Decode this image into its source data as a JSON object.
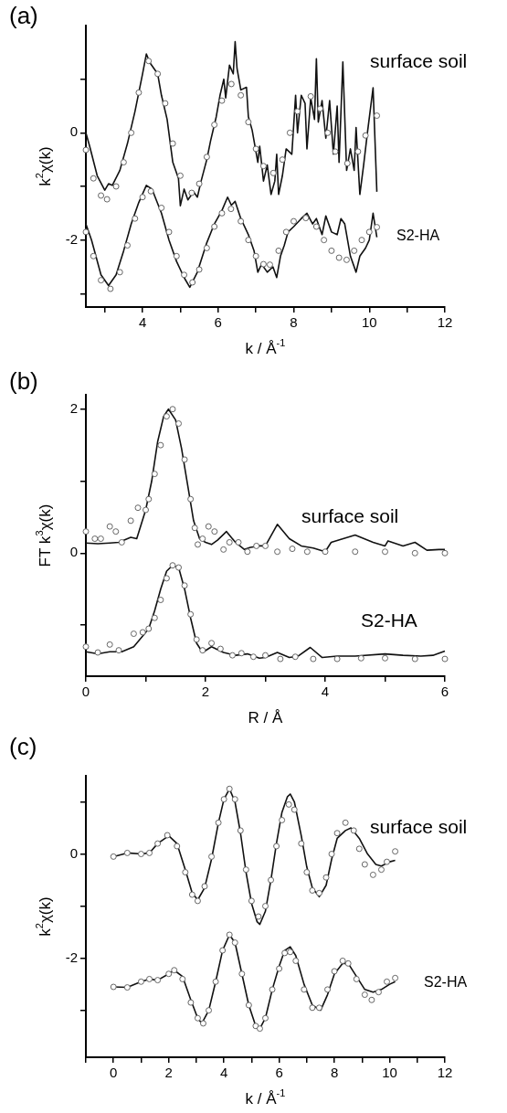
{
  "chart_data": [
    {
      "type": "line",
      "title": "(a)",
      "xlabel": "k / Å$^{-1}$",
      "ylabel": "k$^{2}$χ(k)",
      "xlim": [
        2.5,
        12
      ],
      "ylim": [
        -3.25,
        2.0
      ],
      "xticks": [
        {
          "value": 3,
          "label": null
        },
        4,
        {
          "value": 5,
          "label": null
        },
        6,
        {
          "value": 7,
          "label": null
        },
        8,
        {
          "value": 9,
          "label": null
        },
        10,
        {
          "value": 11,
          "label": null
        },
        12
      ],
      "yticks": [
        {
          "value": -3,
          "label": null
        },
        -2,
        {
          "value": -1,
          "label": null
        },
        0,
        {
          "value": 1,
          "label": null
        }
      ],
      "grid": false,
      "legend": false,
      "annotations": [
        "surface soil",
        "S2-HA"
      ],
      "series": [
        {
          "type": "line",
          "marker": "none",
          "color": "#111111",
          "x": [
            2.5,
            2.6,
            2.8,
            3.0,
            3.1,
            3.2,
            3.4,
            3.6,
            3.8,
            4.0,
            4.1,
            4.2,
            4.4,
            4.5,
            4.65,
            4.8,
            4.95,
            5.0,
            5.1,
            5.2,
            5.35,
            5.45,
            5.55,
            5.7,
            5.8,
            5.95,
            6.05,
            6.15,
            6.2,
            6.3,
            6.4,
            6.45,
            6.5,
            6.6,
            6.75,
            6.8,
            6.9,
            7.05,
            7.1,
            7.2,
            7.3,
            7.4,
            7.5,
            7.55,
            7.6,
            7.7,
            7.8,
            7.95,
            8.05,
            8.1,
            8.2,
            8.3,
            8.35,
            8.45,
            8.55,
            8.6,
            8.65,
            8.75,
            8.85,
            8.95,
            9.05,
            9.15,
            9.2,
            9.3,
            9.4,
            9.5,
            9.6,
            9.65,
            9.75,
            9.85,
            9.95,
            10.1,
            10.2
          ],
          "values": [
            0.0,
            -0.25,
            -0.8,
            -1.07,
            -0.95,
            -0.98,
            -0.7,
            -0.2,
            0.4,
            1.1,
            1.47,
            1.3,
            1.1,
            0.7,
            0.25,
            -0.55,
            -0.85,
            -1.36,
            -1.05,
            -1.25,
            -1.1,
            -1.2,
            -0.9,
            -0.5,
            -0.15,
            0.3,
            0.7,
            1.0,
            0.65,
            1.26,
            1.1,
            1.7,
            1.2,
            0.8,
            0.85,
            0.3,
            0.05,
            -0.55,
            -0.25,
            -0.9,
            -0.6,
            -1.15,
            -0.9,
            -0.4,
            -1.15,
            -0.8,
            -0.3,
            -0.4,
            0.7,
            0.0,
            0.7,
            0.55,
            -0.3,
            0.65,
            0.25,
            1.38,
            0.2,
            0.6,
            -0.1,
            0.6,
            -0.4,
            0.5,
            -0.55,
            1.32,
            -0.7,
            -0.3,
            -0.7,
            0.1,
            -1.15,
            -0.6,
            0.0,
            0.84,
            -1.1
          ]
        },
        {
          "type": "scatter",
          "marker": "circle",
          "color": "#666666",
          "x": [
            2.5,
            2.7,
            2.9,
            3.06,
            3.3,
            3.5,
            3.7,
            3.9,
            4.16,
            4.4,
            4.6,
            4.8,
            5.0,
            5.3,
            5.5,
            5.7,
            5.9,
            6.1,
            6.35,
            6.6,
            6.8,
            7.0,
            7.2,
            7.46,
            7.7,
            7.9,
            8.1,
            8.45,
            8.7,
            8.9,
            9.1,
            9.42,
            9.7,
            9.9,
            10.2
          ],
          "values": [
            -0.32,
            -0.85,
            -1.17,
            -1.24,
            -1.0,
            -0.55,
            0.0,
            0.75,
            1.34,
            1.1,
            0.55,
            -0.2,
            -0.8,
            -1.12,
            -0.95,
            -0.45,
            0.15,
            0.6,
            0.91,
            0.7,
            0.2,
            -0.3,
            -0.62,
            -0.75,
            -0.5,
            0.0,
            0.4,
            0.68,
            0.45,
            0.0,
            -0.35,
            -0.57,
            -0.35,
            -0.05,
            0.32
          ]
        },
        {
          "type": "line",
          "marker": "none",
          "color": "#111111",
          "x": [
            2.5,
            2.65,
            2.9,
            3.1,
            3.3,
            3.5,
            3.7,
            3.9,
            4.1,
            4.25,
            4.5,
            4.7,
            4.9,
            5.1,
            5.25,
            5.45,
            5.7,
            5.9,
            6.1,
            6.25,
            6.35,
            6.45,
            6.6,
            6.8,
            6.95,
            7.05,
            7.15,
            7.3,
            7.45,
            7.55,
            7.65,
            7.75,
            7.85,
            8.0,
            8.2,
            8.35,
            8.5,
            8.6,
            8.75,
            8.85,
            9.0,
            9.15,
            9.25,
            9.35,
            9.5,
            9.65,
            9.75,
            9.9,
            10.0,
            10.1,
            10.2
          ],
          "values": [
            -1.7,
            -2.0,
            -2.65,
            -2.85,
            -2.65,
            -2.2,
            -1.7,
            -1.3,
            -0.98,
            -1.05,
            -1.5,
            -2.0,
            -2.4,
            -2.7,
            -2.88,
            -2.6,
            -2.05,
            -1.7,
            -1.45,
            -1.2,
            -1.35,
            -1.28,
            -1.6,
            -1.9,
            -2.2,
            -2.6,
            -2.45,
            -2.6,
            -2.5,
            -2.7,
            -2.3,
            -2.1,
            -1.85,
            -1.75,
            -1.6,
            -1.5,
            -1.7,
            -1.6,
            -1.9,
            -1.55,
            -1.85,
            -1.9,
            -1.6,
            -1.7,
            -2.3,
            -2.6,
            -2.3,
            -2.15,
            -2.0,
            -1.5,
            -1.95
          ]
        },
        {
          "type": "scatter",
          "marker": "circle",
          "color": "#666666",
          "x": [
            2.5,
            2.7,
            2.9,
            3.15,
            3.4,
            3.6,
            3.8,
            4.0,
            4.22,
            4.5,
            4.7,
            4.9,
            5.1,
            5.32,
            5.5,
            5.7,
            5.9,
            6.1,
            6.34,
            6.6,
            6.8,
            7.0,
            7.2,
            7.37,
            7.6,
            7.8,
            8.0,
            8.32,
            8.6,
            8.8,
            9.0,
            9.2,
            9.4,
            9.6,
            9.8,
            10.0,
            10.2
          ],
          "values": [
            -1.85,
            -2.3,
            -2.75,
            -2.91,
            -2.6,
            -2.1,
            -1.6,
            -1.2,
            -1.09,
            -1.4,
            -1.85,
            -2.3,
            -2.65,
            -2.79,
            -2.55,
            -2.15,
            -1.75,
            -1.5,
            -1.42,
            -1.65,
            -2.0,
            -2.3,
            -2.45,
            -2.46,
            -2.2,
            -1.85,
            -1.65,
            -1.59,
            -1.75,
            -2.0,
            -2.2,
            -2.33,
            -2.37,
            -2.2,
            -2.0,
            -1.85,
            -1.76
          ]
        }
      ]
    },
    {
      "type": "line",
      "title": "(b)",
      "xlabel": "R / Å",
      "ylabel": "FT k$^{3}$χ(k)",
      "xlim": [
        0,
        6
      ],
      "ylim": [
        -1.71,
        2.2
      ],
      "xticks": [
        0,
        {
          "value": 1,
          "label": null
        },
        2,
        {
          "value": 3,
          "label": null
        },
        4,
        {
          "value": 5,
          "label": null
        },
        6
      ],
      "yticks": [
        {
          "value": -1,
          "label": null
        },
        0,
        {
          "value": 1,
          "label": null
        },
        2
      ],
      "grid": false,
      "legend": false,
      "annotations": [
        "surface soil",
        "S2-HA"
      ],
      "series": [
        {
          "type": "line",
          "marker": "none",
          "color": "#111111",
          "x": [
            0,
            0.2,
            0.4,
            0.55,
            0.75,
            0.85,
            1.0,
            1.1,
            1.2,
            1.3,
            1.38,
            1.5,
            1.6,
            1.7,
            1.8,
            1.9,
            2.0,
            2.1,
            2.2,
            2.35,
            2.5,
            2.65,
            2.75,
            2.9,
            3.0,
            3.2,
            3.4,
            3.6,
            3.8,
            4.0,
            4.1,
            4.5,
            4.8,
            5.0,
            5.05,
            5.3,
            5.5,
            5.7,
            5.9,
            6.0
          ],
          "values": [
            0.14,
            0.13,
            0.14,
            0.15,
            0.22,
            0.2,
            0.6,
            1.0,
            1.55,
            1.9,
            2.0,
            1.85,
            1.45,
            0.95,
            0.45,
            0.2,
            0.15,
            0.12,
            0.18,
            0.3,
            0.15,
            0.05,
            0.08,
            0.1,
            0.1,
            0.4,
            0.2,
            0.1,
            0.07,
            0.02,
            0.15,
            0.25,
            0.15,
            0.1,
            0.17,
            0.1,
            0.15,
            0.04,
            0.05,
            0.05
          ]
        },
        {
          "type": "scatter",
          "marker": "circle",
          "color": "#666666",
          "x": [
            0,
            0.15,
            0.25,
            0.4,
            0.5,
            0.6,
            0.75,
            0.87,
            1.0,
            1.05,
            1.15,
            1.25,
            1.35,
            1.45,
            1.55,
            1.65,
            1.75,
            1.82,
            1.87,
            1.95,
            2.05,
            2.15,
            2.3,
            2.4,
            2.55,
            2.7,
            2.85,
            3.0,
            3.2,
            3.45,
            3.7,
            4.0,
            4.5,
            5.0,
            5.5,
            6.0
          ],
          "values": [
            0.3,
            0.2,
            0.2,
            0.37,
            0.3,
            0.15,
            0.45,
            0.63,
            0.6,
            0.75,
            1.1,
            1.5,
            1.9,
            2.0,
            1.8,
            1.3,
            0.75,
            0.35,
            0.12,
            0.2,
            0.37,
            0.3,
            0.05,
            0.15,
            0.15,
            0.02,
            0.1,
            0.1,
            0.02,
            0.06,
            0.02,
            0.02,
            0.02,
            0.02,
            0.0,
            0.0
          ]
        },
        {
          "type": "line",
          "marker": "none",
          "color": "#111111",
          "x": [
            0,
            0.2,
            0.4,
            0.6,
            0.8,
            0.95,
            1.05,
            1.15,
            1.25,
            1.35,
            1.45,
            1.55,
            1.65,
            1.75,
            1.85,
            1.95,
            2.1,
            2.3,
            2.5,
            2.7,
            2.9,
            3.0,
            3.2,
            3.4,
            3.55,
            3.75,
            3.95,
            4.2,
            4.5,
            5.0,
            5.3,
            5.6,
            5.8,
            6.0
          ],
          "values": [
            -1.37,
            -1.4,
            -1.37,
            -1.37,
            -1.3,
            -1.15,
            -1.05,
            -0.8,
            -0.5,
            -0.25,
            -0.17,
            -0.2,
            -0.5,
            -0.9,
            -1.25,
            -1.38,
            -1.3,
            -1.38,
            -1.42,
            -1.4,
            -1.46,
            -1.45,
            -1.38,
            -1.45,
            -1.43,
            -1.31,
            -1.45,
            -1.43,
            -1.43,
            -1.4,
            -1.42,
            -1.43,
            -1.42,
            -1.36
          ]
        },
        {
          "type": "scatter",
          "marker": "circle",
          "color": "#666666",
          "x": [
            0,
            0.2,
            0.4,
            0.55,
            0.8,
            0.95,
            1.05,
            1.15,
            1.25,
            1.35,
            1.45,
            1.55,
            1.65,
            1.75,
            1.85,
            1.95,
            2.1,
            2.25,
            2.45,
            2.6,
            2.8,
            3.0,
            3.25,
            3.5,
            3.8,
            4.2,
            4.6,
            5.0,
            5.5,
            6.0
          ],
          "values": [
            -1.3,
            -1.38,
            -1.27,
            -1.35,
            -1.12,
            -1.1,
            -1.05,
            -0.9,
            -0.65,
            -0.35,
            -0.17,
            -0.2,
            -0.45,
            -0.85,
            -1.2,
            -1.35,
            -1.25,
            -1.33,
            -1.42,
            -1.39,
            -1.44,
            -1.42,
            -1.47,
            -1.44,
            -1.47,
            -1.47,
            -1.46,
            -1.46,
            -1.47,
            -1.47
          ]
        }
      ]
    },
    {
      "type": "line",
      "title": "(c)",
      "xlabel": "k / Å$^{-1}$",
      "ylabel": "k$^{2}$χ(k)",
      "xlim": [
        -1,
        12
      ],
      "ylim": [
        -3.9,
        1.5
      ],
      "xticks": [
        {
          "value": -1,
          "label": null
        },
        0,
        {
          "value": 1,
          "label": null
        },
        2,
        {
          "value": 3,
          "label": null
        },
        4,
        {
          "value": 5,
          "label": null
        },
        6,
        {
          "value": 7,
          "label": null
        },
        8,
        {
          "value": 9,
          "label": null
        },
        10,
        {
          "value": 11,
          "label": null
        },
        12
      ],
      "yticks": [
        {
          "value": -3,
          "label": null
        },
        -2,
        {
          "value": -1,
          "label": null
        },
        0,
        {
          "value": 1,
          "label": null
        }
      ],
      "grid": false,
      "legend": false,
      "annotations": [
        "surface soil",
        "S2-HA"
      ],
      "series": [
        {
          "type": "line",
          "marker": "none",
          "color": "#111111",
          "x": [
            0,
            0.5,
            1.0,
            1.3,
            1.6,
            2.0,
            2.3,
            2.6,
            2.85,
            3.05,
            3.3,
            3.55,
            3.8,
            4.0,
            4.2,
            4.4,
            4.6,
            4.8,
            5.0,
            5.2,
            5.3,
            5.5,
            5.7,
            5.9,
            6.1,
            6.3,
            6.4,
            6.55,
            6.8,
            7.0,
            7.2,
            7.45,
            7.7,
            7.9,
            8.1,
            8.4,
            8.6,
            8.9,
            9.2,
            9.5,
            9.7,
            10.0,
            10.2
          ],
          "values": [
            -0.05,
            0.02,
            0.0,
            0.02,
            0.2,
            0.35,
            0.2,
            -0.3,
            -0.75,
            -0.88,
            -0.65,
            -0.1,
            0.6,
            1.05,
            1.25,
            1.0,
            0.4,
            -0.35,
            -0.95,
            -1.3,
            -1.35,
            -1.1,
            -0.5,
            0.2,
            0.8,
            1.1,
            1.15,
            1.0,
            0.35,
            -0.25,
            -0.65,
            -0.82,
            -0.6,
            -0.1,
            0.3,
            0.45,
            0.5,
            0.3,
            0.0,
            -0.2,
            -0.23,
            -0.15,
            -0.12
          ]
        },
        {
          "type": "scatter",
          "marker": "circle",
          "color": "#666666",
          "x": [
            0,
            0.5,
            1.0,
            1.3,
            1.6,
            1.95,
            2.3,
            2.6,
            2.85,
            3.05,
            3.3,
            3.55,
            3.8,
            4.0,
            4.2,
            4.4,
            4.6,
            4.8,
            5.0,
            5.25,
            5.5,
            5.7,
            5.9,
            6.1,
            6.35,
            6.55,
            6.8,
            7.0,
            7.2,
            7.45,
            7.7,
            7.9,
            8.1,
            8.4,
            8.7,
            8.9,
            9.1,
            9.4,
            9.7,
            9.9,
            10.2
          ],
          "values": [
            -0.05,
            0.02,
            0.0,
            0.02,
            0.2,
            0.36,
            0.15,
            -0.35,
            -0.78,
            -0.9,
            -0.62,
            -0.05,
            0.6,
            1.05,
            1.25,
            1.05,
            0.45,
            -0.3,
            -0.9,
            -1.2,
            -1.0,
            -0.5,
            0.15,
            0.65,
            0.95,
            0.85,
            0.2,
            -0.35,
            -0.7,
            -0.75,
            -0.45,
            0.0,
            0.4,
            0.6,
            0.45,
            0.1,
            -0.2,
            -0.4,
            -0.3,
            -0.15,
            0.05
          ]
        },
        {
          "type": "line",
          "marker": "none",
          "color": "#111111",
          "x": [
            0,
            0.5,
            1.0,
            1.3,
            1.6,
            2.0,
            2.2,
            2.5,
            2.8,
            3.05,
            3.2,
            3.45,
            3.7,
            3.95,
            4.2,
            4.4,
            4.65,
            4.9,
            5.15,
            5.3,
            5.5,
            5.75,
            6.0,
            6.2,
            6.4,
            6.6,
            6.9,
            7.2,
            7.5,
            7.75,
            8.0,
            8.3,
            8.5,
            8.8,
            9.1,
            9.4,
            9.7,
            10.0,
            10.2
          ],
          "values": [
            -2.55,
            -2.56,
            -2.45,
            -2.4,
            -2.42,
            -2.3,
            -2.23,
            -2.35,
            -2.8,
            -3.15,
            -3.25,
            -3.0,
            -2.45,
            -1.85,
            -1.55,
            -1.7,
            -2.3,
            -2.9,
            -3.3,
            -3.35,
            -3.15,
            -2.6,
            -2.15,
            -1.85,
            -1.78,
            -1.95,
            -2.5,
            -2.9,
            -3.0,
            -2.7,
            -2.3,
            -2.1,
            -2.1,
            -2.35,
            -2.6,
            -2.65,
            -2.6,
            -2.5,
            -2.45
          ]
        },
        {
          "type": "scatter",
          "marker": "circle",
          "color": "#666666",
          "x": [
            0,
            0.5,
            1.0,
            1.3,
            1.6,
            2.0,
            2.2,
            2.5,
            2.8,
            3.05,
            3.25,
            3.45,
            3.7,
            3.95,
            4.2,
            4.4,
            4.65,
            4.9,
            5.15,
            5.3,
            5.5,
            5.75,
            6.0,
            6.2,
            6.4,
            6.6,
            6.9,
            7.2,
            7.45,
            7.75,
            8.0,
            8.3,
            8.5,
            8.8,
            9.1,
            9.35,
            9.6,
            9.9,
            10.2
          ],
          "values": [
            -2.55,
            -2.56,
            -2.45,
            -2.4,
            -2.42,
            -2.3,
            -2.23,
            -2.4,
            -2.85,
            -3.15,
            -3.25,
            -3.0,
            -2.45,
            -1.85,
            -1.55,
            -1.7,
            -2.3,
            -2.9,
            -3.3,
            -3.35,
            -3.15,
            -2.6,
            -2.2,
            -1.9,
            -1.88,
            -2.05,
            -2.6,
            -2.95,
            -2.95,
            -2.6,
            -2.25,
            -2.05,
            -2.1,
            -2.4,
            -2.7,
            -2.8,
            -2.65,
            -2.45,
            -2.38
          ]
        }
      ]
    }
  ]
}
